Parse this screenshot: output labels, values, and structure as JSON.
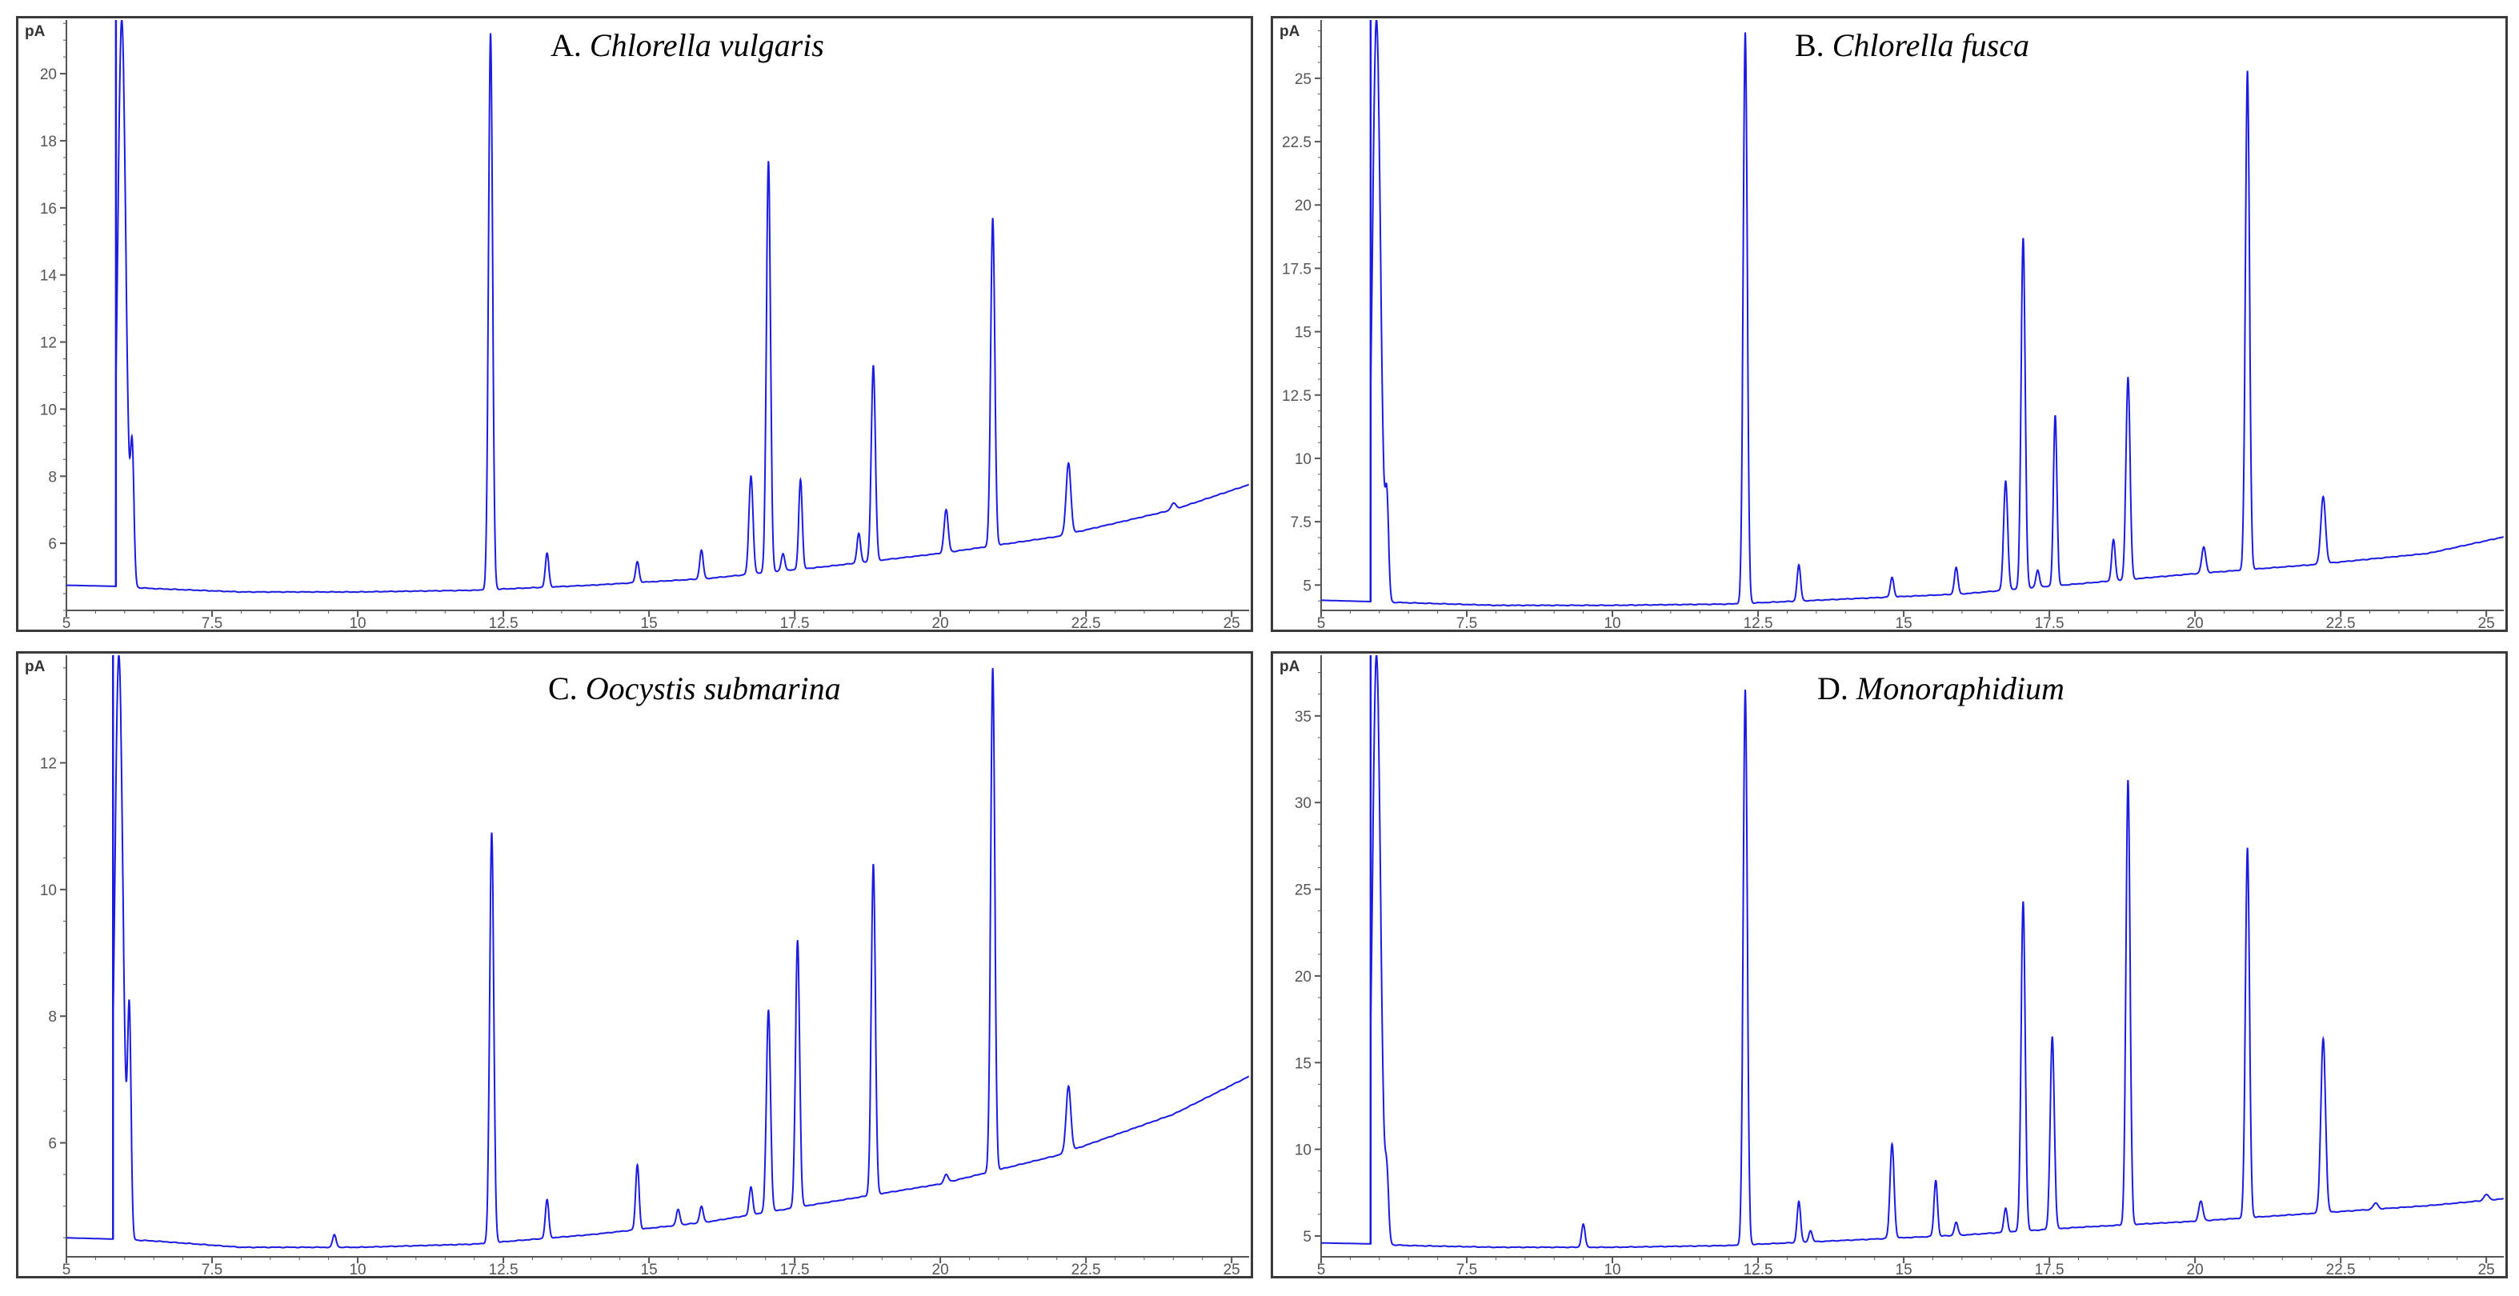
{
  "colors": {
    "trace": "#1c1ce0",
    "axis": "#555555",
    "frame": "#3a3a3a"
  },
  "chart_data": [
    {
      "type": "line",
      "panel_label": "A.",
      "species": "Chlorella vulgaris",
      "y_unit": "pA",
      "xlim": [
        5,
        25.3
      ],
      "ylim": [
        4.0,
        21.6
      ],
      "x_ticks": [
        5,
        7.5,
        10,
        12.5,
        15,
        17.5,
        20,
        22.5,
        25
      ],
      "x_tick_labels": [
        "5",
        "7.5",
        "10",
        "12.5",
        "15",
        "17.5",
        "20",
        "22.5",
        "25"
      ],
      "y_ticks": [
        6,
        8,
        10,
        12,
        14,
        16,
        18,
        20
      ],
      "y_tick_labels": [
        "6",
        "8",
        "10",
        "12",
        "14",
        "16",
        "18",
        "20"
      ],
      "start_time": 5.85,
      "baseline": [
        [
          5.0,
          4.75
        ],
        [
          5.8,
          4.72
        ],
        [
          6.5,
          4.65
        ],
        [
          8.0,
          4.55
        ],
        [
          10.0,
          4.55
        ],
        [
          12.0,
          4.6
        ],
        [
          14.0,
          4.75
        ],
        [
          16.0,
          4.95
        ],
        [
          18.0,
          5.3
        ],
        [
          20.0,
          5.7
        ],
        [
          22.0,
          6.2
        ],
        [
          24.0,
          7.0
        ],
        [
          25.3,
          7.75
        ]
      ],
      "peaks": [
        {
          "rt": 5.95,
          "height": 21.6,
          "width": 0.07
        },
        {
          "rt": 6.13,
          "height": 8.5,
          "width": 0.03
        },
        {
          "rt": 12.28,
          "height": 21.2,
          "width": 0.035
        },
        {
          "rt": 13.25,
          "height": 5.7,
          "width": 0.03
        },
        {
          "rt": 14.8,
          "height": 5.45,
          "width": 0.03
        },
        {
          "rt": 15.9,
          "height": 5.8,
          "width": 0.03
        },
        {
          "rt": 16.75,
          "height": 8.0,
          "width": 0.035
        },
        {
          "rt": 17.05,
          "height": 17.4,
          "width": 0.035
        },
        {
          "rt": 17.3,
          "height": 5.7,
          "width": 0.03
        },
        {
          "rt": 17.6,
          "height": 7.9,
          "width": 0.03
        },
        {
          "rt": 18.6,
          "height": 6.3,
          "width": 0.03
        },
        {
          "rt": 18.85,
          "height": 11.3,
          "width": 0.035
        },
        {
          "rt": 20.1,
          "height": 7.0,
          "width": 0.035
        },
        {
          "rt": 20.9,
          "height": 15.7,
          "width": 0.035
        },
        {
          "rt": 22.2,
          "height": 8.4,
          "width": 0.04
        },
        {
          "rt": 24.0,
          "height": 7.2,
          "width": 0.04
        }
      ]
    },
    {
      "type": "line",
      "panel_label": "B.",
      "species": "Chlorella fusca",
      "y_unit": "pA",
      "xlim": [
        5,
        25.3
      ],
      "ylim": [
        4.0,
        27.3
      ],
      "x_ticks": [
        5,
        7.5,
        10,
        12.5,
        15,
        17.5,
        20,
        22.5,
        25
      ],
      "x_tick_labels": [
        "5",
        "7.5",
        "10",
        "12.5",
        "15",
        "17.5",
        "20",
        "22.5",
        "25"
      ],
      "y_ticks": [
        5,
        7.5,
        10,
        12.5,
        15,
        17.5,
        20,
        22.5,
        25
      ],
      "y_tick_labels": [
        "5",
        "7.5",
        "10",
        "12.5",
        "15",
        "17.5",
        "20",
        "22.5",
        "25"
      ],
      "start_time": 5.85,
      "baseline": [
        [
          5.0,
          4.4
        ],
        [
          5.8,
          4.35
        ],
        [
          6.5,
          4.3
        ],
        [
          8.0,
          4.2
        ],
        [
          10.0,
          4.2
        ],
        [
          12.0,
          4.25
        ],
        [
          14.0,
          4.45
        ],
        [
          16.0,
          4.65
        ],
        [
          18.0,
          5.05
        ],
        [
          20.0,
          5.45
        ],
        [
          22.0,
          5.8
        ],
        [
          24.0,
          6.25
        ],
        [
          25.3,
          6.9
        ]
      ],
      "peaks": [
        {
          "rt": 5.95,
          "height": 27.3,
          "width": 0.07
        },
        {
          "rt": 6.13,
          "height": 8.0,
          "width": 0.03
        },
        {
          "rt": 12.28,
          "height": 26.8,
          "width": 0.035
        },
        {
          "rt": 13.2,
          "height": 5.8,
          "width": 0.03
        },
        {
          "rt": 14.8,
          "height": 5.3,
          "width": 0.03
        },
        {
          "rt": 15.9,
          "height": 5.7,
          "width": 0.03
        },
        {
          "rt": 16.75,
          "height": 9.1,
          "width": 0.035
        },
        {
          "rt": 17.05,
          "height": 18.7,
          "width": 0.035
        },
        {
          "rt": 17.3,
          "height": 5.6,
          "width": 0.03
        },
        {
          "rt": 17.6,
          "height": 11.7,
          "width": 0.03
        },
        {
          "rt": 18.6,
          "height": 6.8,
          "width": 0.03
        },
        {
          "rt": 18.85,
          "height": 13.2,
          "width": 0.035
        },
        {
          "rt": 20.15,
          "height": 6.5,
          "width": 0.035
        },
        {
          "rt": 20.9,
          "height": 25.3,
          "width": 0.035
        },
        {
          "rt": 22.2,
          "height": 8.5,
          "width": 0.04
        }
      ]
    },
    {
      "type": "line",
      "panel_label": "C.",
      "species": "Oocystis submarina",
      "y_unit": "pA",
      "xlim": [
        5,
        25.3
      ],
      "ylim": [
        4.2,
        13.7
      ],
      "x_ticks": [
        5,
        7.5,
        10,
        12.5,
        15,
        17.5,
        20,
        22.5,
        25
      ],
      "x_tick_labels": [
        "5",
        "7.5",
        "10",
        "12.5",
        "15",
        "17.5",
        "20",
        "22.5",
        "25"
      ],
      "y_ticks": [
        6,
        8,
        10,
        12
      ],
      "y_tick_labels": [
        "6",
        "8",
        "10",
        "12"
      ],
      "start_time": 5.8,
      "baseline": [
        [
          5.0,
          4.5
        ],
        [
          5.8,
          4.48
        ],
        [
          6.5,
          4.45
        ],
        [
          8.0,
          4.35
        ],
        [
          10.0,
          4.35
        ],
        [
          12.0,
          4.4
        ],
        [
          14.0,
          4.55
        ],
        [
          16.0,
          4.75
        ],
        [
          18.0,
          5.05
        ],
        [
          20.0,
          5.35
        ],
        [
          22.0,
          5.8
        ],
        [
          24.0,
          6.45
        ],
        [
          25.3,
          7.05
        ]
      ],
      "peaks": [
        {
          "rt": 5.9,
          "height": 13.7,
          "width": 0.07
        },
        {
          "rt": 6.08,
          "height": 7.9,
          "width": 0.03
        },
        {
          "rt": 9.6,
          "height": 4.55,
          "width": 0.03
        },
        {
          "rt": 12.3,
          "height": 10.9,
          "width": 0.035
        },
        {
          "rt": 13.25,
          "height": 5.1,
          "width": 0.03
        },
        {
          "rt": 14.8,
          "height": 5.65,
          "width": 0.03
        },
        {
          "rt": 15.5,
          "height": 4.95,
          "width": 0.03
        },
        {
          "rt": 15.9,
          "height": 5.0,
          "width": 0.03
        },
        {
          "rt": 16.75,
          "height": 5.3,
          "width": 0.03
        },
        {
          "rt": 17.05,
          "height": 8.1,
          "width": 0.035
        },
        {
          "rt": 17.55,
          "height": 9.2,
          "width": 0.035
        },
        {
          "rt": 18.85,
          "height": 10.4,
          "width": 0.035
        },
        {
          "rt": 20.1,
          "height": 5.5,
          "width": 0.035
        },
        {
          "rt": 20.9,
          "height": 13.5,
          "width": 0.035
        },
        {
          "rt": 22.2,
          "height": 6.9,
          "width": 0.04
        }
      ]
    },
    {
      "type": "line",
      "panel_label": "D.",
      "species": "Monoraphidium",
      "y_unit": "pA",
      "xlim": [
        5,
        25.3
      ],
      "ylim": [
        3.8,
        38.5
      ],
      "x_ticks": [
        5,
        7.5,
        10,
        12.5,
        15,
        17.5,
        20,
        22.5,
        25
      ],
      "x_tick_labels": [
        "5",
        "7.5",
        "10",
        "12.5",
        "15",
        "17.5",
        "20",
        "22.5",
        "25"
      ],
      "y_ticks": [
        5,
        10,
        15,
        20,
        25,
        30,
        35
      ],
      "y_tick_labels": [
        "5",
        "10",
        "15",
        "20",
        "25",
        "30",
        "35"
      ],
      "start_time": 5.85,
      "baseline": [
        [
          5.0,
          4.6
        ],
        [
          5.8,
          4.55
        ],
        [
          6.5,
          4.45
        ],
        [
          8.0,
          4.35
        ],
        [
          10.0,
          4.35
        ],
        [
          12.0,
          4.45
        ],
        [
          14.0,
          4.75
        ],
        [
          16.0,
          5.05
        ],
        [
          18.0,
          5.5
        ],
        [
          20.0,
          5.85
        ],
        [
          22.0,
          6.3
        ],
        [
          24.0,
          6.75
        ],
        [
          25.3,
          7.15
        ]
      ],
      "peaks": [
        {
          "rt": 5.95,
          "height": 38.5,
          "width": 0.07
        },
        {
          "rt": 6.13,
          "height": 8.0,
          "width": 0.03
        },
        {
          "rt": 9.5,
          "height": 5.7,
          "width": 0.03
        },
        {
          "rt": 12.28,
          "height": 36.5,
          "width": 0.035
        },
        {
          "rt": 13.2,
          "height": 7.0,
          "width": 0.03
        },
        {
          "rt": 13.4,
          "height": 5.3,
          "width": 0.03
        },
        {
          "rt": 14.8,
          "height": 10.3,
          "width": 0.035
        },
        {
          "rt": 15.55,
          "height": 8.2,
          "width": 0.03
        },
        {
          "rt": 15.9,
          "height": 5.8,
          "width": 0.03
        },
        {
          "rt": 16.75,
          "height": 6.6,
          "width": 0.03
        },
        {
          "rt": 17.05,
          "height": 24.3,
          "width": 0.035
        },
        {
          "rt": 17.55,
          "height": 16.5,
          "width": 0.035
        },
        {
          "rt": 18.85,
          "height": 31.3,
          "width": 0.035
        },
        {
          "rt": 20.1,
          "height": 7.0,
          "width": 0.035
        },
        {
          "rt": 20.9,
          "height": 27.4,
          "width": 0.035
        },
        {
          "rt": 22.2,
          "height": 16.4,
          "width": 0.04
        },
        {
          "rt": 23.1,
          "height": 6.9,
          "width": 0.04
        },
        {
          "rt": 25.0,
          "height": 7.4,
          "width": 0.04
        }
      ]
    }
  ]
}
